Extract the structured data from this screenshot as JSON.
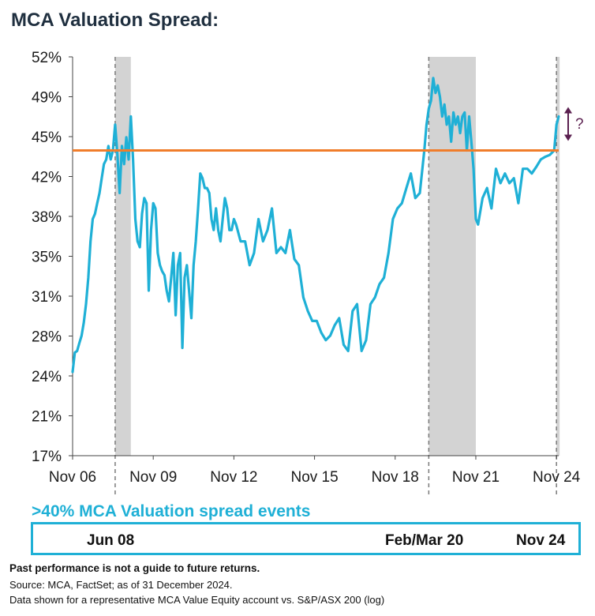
{
  "title": "MCA Valuation Spread:",
  "chart_data": {
    "type": "line",
    "scale": "log",
    "ylim": [
      0.17,
      0.52
    ],
    "y_ticks": [
      "17%",
      "21%",
      "24%",
      "28%",
      "31%",
      "35%",
      "38%",
      "42%",
      "45%",
      "49%",
      "52%"
    ],
    "x_ticks": [
      "Nov 06",
      "Nov 09",
      "Nov 12",
      "Nov 15",
      "Nov 18",
      "Nov 21",
      "Nov 24"
    ],
    "threshold": 0.4,
    "threshold_color": "#f07d2b",
    "line_color": "#1fb0d6",
    "shade_color": "#d3d3d3",
    "shaded_periods": [
      [
        "2008-06",
        "2009-01"
      ],
      [
        "2020-02",
        "2021-11"
      ],
      [
        "2024-11",
        "2024-12"
      ]
    ],
    "annotation": "?",
    "annotation_color": "#5a1f4f",
    "series": [
      {
        "x": [
          "2006-11",
          "2006-12",
          "2007-01",
          "2007-02",
          "2007-03",
          "2007-04",
          "2007-05",
          "2007-06",
          "2007-07",
          "2007-08",
          "2007-09",
          "2007-10",
          "2007-11",
          "2007-12",
          "2008-01",
          "2008-02",
          "2008-03",
          "2008-04",
          "2008-05",
          "2008-06",
          "2008-07",
          "2008-08",
          "2008-09",
          "2008-10",
          "2008-11",
          "2008-12",
          "2009-01",
          "2009-02",
          "2009-03",
          "2009-04",
          "2009-05",
          "2009-06",
          "2009-07",
          "2009-08",
          "2009-09",
          "2009-10",
          "2009-11",
          "2009-12",
          "2010-01",
          "2010-02",
          "2010-03",
          "2010-04",
          "2010-05",
          "2010-06",
          "2010-07",
          "2010-08",
          "2010-09",
          "2010-10",
          "2010-11",
          "2010-12",
          "2011-01",
          "2011-02",
          "2011-03",
          "2011-04",
          "2011-05",
          "2011-06",
          "2011-07",
          "2011-08",
          "2011-09",
          "2011-10",
          "2011-11",
          "2011-12",
          "2012-01",
          "2012-02",
          "2012-03",
          "2012-04",
          "2012-05",
          "2012-06",
          "2012-07",
          "2012-08",
          "2012-09",
          "2012-10",
          "2012-11",
          "2012-12",
          "2013-02",
          "2013-04",
          "2013-06",
          "2013-08",
          "2013-10",
          "2013-12",
          "2014-02",
          "2014-04",
          "2014-06",
          "2014-08",
          "2014-10",
          "2014-12",
          "2015-02",
          "2015-04",
          "2015-06",
          "2015-08",
          "2015-10",
          "2015-12",
          "2016-02",
          "2016-04",
          "2016-06",
          "2016-08",
          "2016-10",
          "2016-12",
          "2017-02",
          "2017-04",
          "2017-06",
          "2017-08",
          "2017-10",
          "2017-12",
          "2018-02",
          "2018-04",
          "2018-06",
          "2018-08",
          "2018-10",
          "2018-12",
          "2019-02",
          "2019-04",
          "2019-06",
          "2019-08",
          "2019-10",
          "2019-12",
          "2020-01",
          "2020-02",
          "2020-03",
          "2020-04",
          "2020-05",
          "2020-06",
          "2020-07",
          "2020-08",
          "2020-09",
          "2020-10",
          "2020-11",
          "2020-12",
          "2021-01",
          "2021-02",
          "2021-03",
          "2021-04",
          "2021-05",
          "2021-06",
          "2021-07",
          "2021-08",
          "2021-09",
          "2021-10",
          "2021-11",
          "2021-12",
          "2022-02",
          "2022-04",
          "2022-06",
          "2022-08",
          "2022-10",
          "2022-12",
          "2023-02",
          "2023-04",
          "2023-06",
          "2023-08",
          "2023-10",
          "2023-12",
          "2024-02",
          "2024-04",
          "2024-06",
          "2024-08",
          "2024-10",
          "2024-11",
          "2024-12"
        ],
        "y": [
          0.215,
          0.227,
          0.228,
          0.233,
          0.238,
          0.247,
          0.26,
          0.28,
          0.31,
          0.33,
          0.335,
          0.345,
          0.355,
          0.37,
          0.385,
          0.39,
          0.405,
          0.39,
          0.4,
          0.43,
          0.395,
          0.355,
          0.405,
          0.385,
          0.415,
          0.39,
          0.44,
          0.39,
          0.33,
          0.31,
          0.305,
          0.335,
          0.35,
          0.345,
          0.27,
          0.32,
          0.345,
          0.34,
          0.3,
          0.29,
          0.285,
          0.282,
          0.27,
          0.262,
          0.28,
          0.3,
          0.252,
          0.29,
          0.3,
          0.23,
          0.28,
          0.29,
          0.27,
          0.25,
          0.29,
          0.31,
          0.34,
          0.375,
          0.37,
          0.36,
          0.36,
          0.355,
          0.33,
          0.32,
          0.34,
          0.32,
          0.31,
          0.33,
          0.35,
          0.34,
          0.32,
          0.32,
          0.33,
          0.325,
          0.31,
          0.31,
          0.29,
          0.3,
          0.33,
          0.31,
          0.32,
          0.34,
          0.3,
          0.305,
          0.3,
          0.32,
          0.295,
          0.29,
          0.265,
          0.255,
          0.248,
          0.248,
          0.24,
          0.235,
          0.238,
          0.245,
          0.25,
          0.232,
          0.228,
          0.255,
          0.26,
          0.228,
          0.235,
          0.26,
          0.265,
          0.275,
          0.28,
          0.3,
          0.33,
          0.34,
          0.345,
          0.36,
          0.375,
          0.35,
          0.355,
          0.4,
          0.43,
          0.45,
          0.46,
          0.49,
          0.47,
          0.48,
          0.465,
          0.44,
          0.455,
          0.43,
          0.44,
          0.41,
          0.445,
          0.43,
          0.44,
          0.42,
          0.44,
          0.445,
          0.4,
          0.44,
          0.41,
          0.38,
          0.33,
          0.325,
          0.35,
          0.36,
          0.34,
          0.38,
          0.365,
          0.375,
          0.365,
          0.37,
          0.345,
          0.38,
          0.38,
          0.375,
          0.382,
          0.39,
          0.393,
          0.395,
          0.4,
          0.43,
          0.44
        ]
      }
    ]
  },
  "events": {
    "title": ">40% MCA Valuation spread events",
    "labels": [
      "Jun 08",
      "Feb/Mar 20",
      "Nov 24"
    ]
  },
  "footer": {
    "disclaimer": "Past performance is not a guide to future returns.",
    "source": "Source: MCA, FactSet; as of 31 December 2024.",
    "note": "Data shown for a representative MCA Value Equity account vs. S&P/ASX 200 (log)"
  }
}
